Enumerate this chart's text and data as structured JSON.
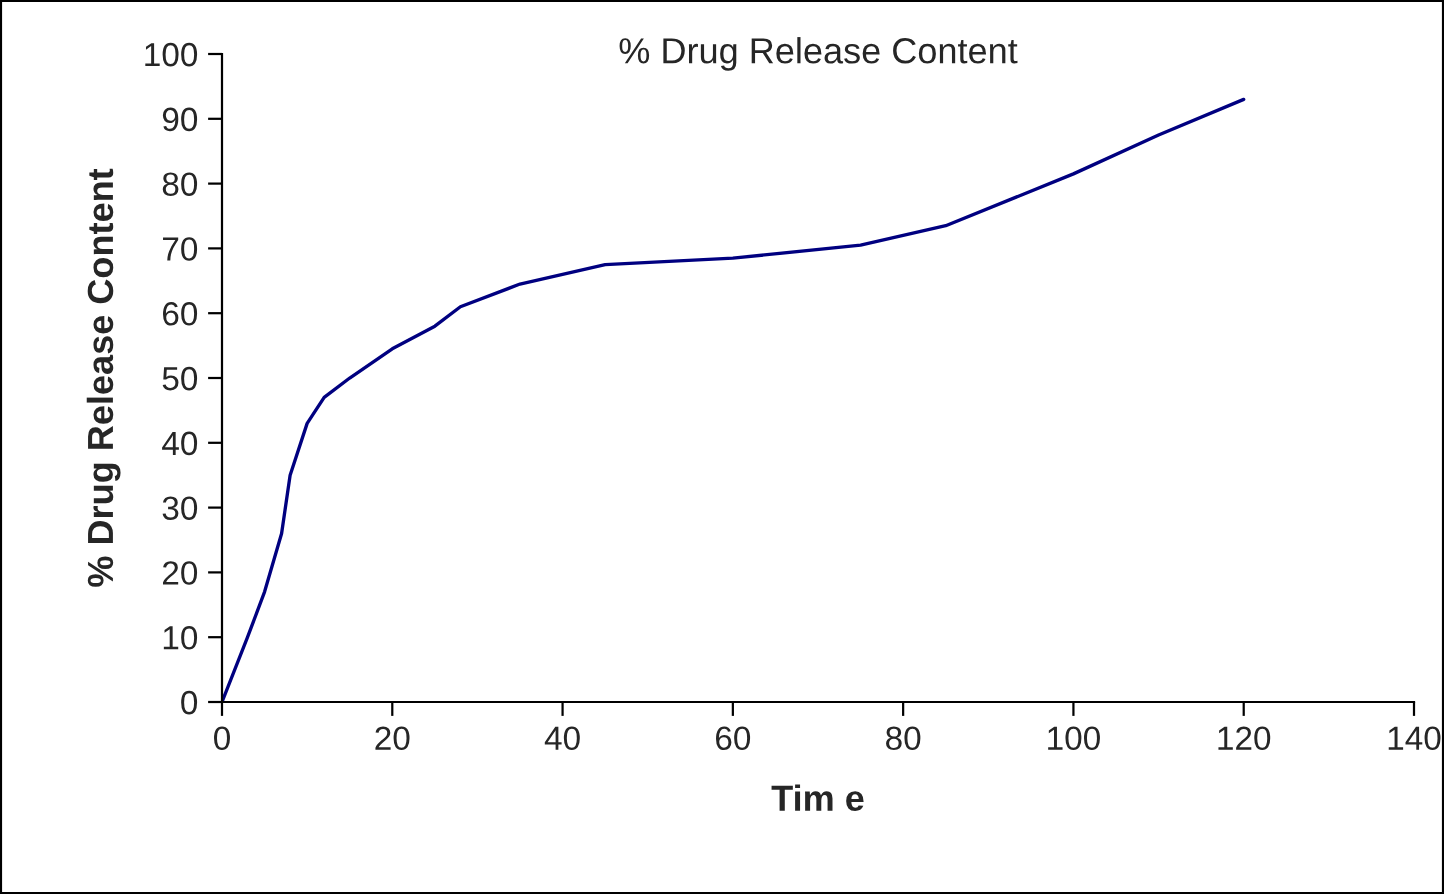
{
  "chart_data": {
    "type": "line",
    "title": "% Drug Release Content",
    "xlabel": "Tim e",
    "ylabel": "% Drug Release Content",
    "x": [
      0,
      3,
      5,
      7,
      8,
      10,
      12,
      15,
      20,
      25,
      28,
      35,
      45,
      60,
      75,
      85,
      100,
      110,
      120
    ],
    "series": [
      {
        "color": "#000080",
        "values": [
          0,
          10,
          17,
          26,
          35,
          43,
          47,
          50,
          54.5,
          58,
          61,
          64.5,
          67.5,
          68.5,
          70.5,
          73.5,
          81.5,
          87.5,
          93
        ]
      }
    ],
    "xlim": [
      0,
      140
    ],
    "xticks": [
      0,
      20,
      40,
      60,
      80,
      100,
      120,
      140
    ],
    "ylim": [
      0,
      100
    ],
    "yticks": [
      0,
      10,
      20,
      30,
      40,
      50,
      60,
      70,
      80,
      90,
      100
    ],
    "grid": false,
    "legend": false,
    "marker": "none",
    "line_style": "solid"
  }
}
